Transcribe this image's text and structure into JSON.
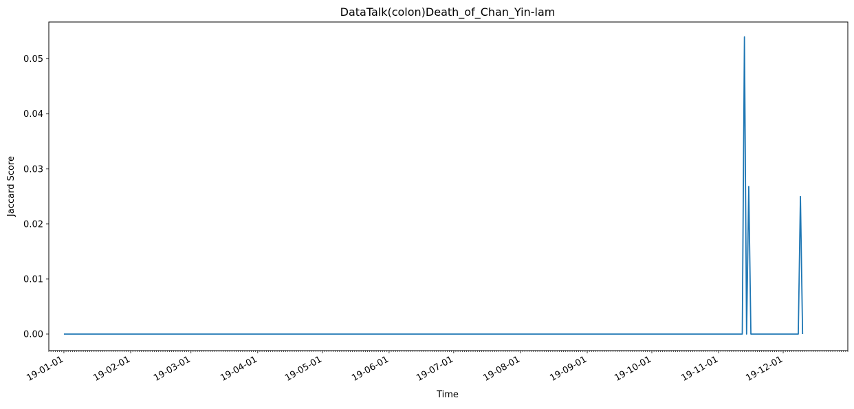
{
  "chart_data": {
    "type": "line",
    "title": "DataTalk(colon)Death_of_Chan_Yin-lam",
    "xlabel": "Time",
    "ylabel": "Jaccard Score",
    "xlim": [
      "2018-12-25",
      "2019-12-31"
    ],
    "ylim": [
      -0.003,
      0.0567
    ],
    "x_ticks": [
      {
        "date": "2019-01-01",
        "label": "19-01-01"
      },
      {
        "date": "2019-02-01",
        "label": "19-02-01"
      },
      {
        "date": "2019-03-01",
        "label": "19-03-01"
      },
      {
        "date": "2019-04-01",
        "label": "19-04-01"
      },
      {
        "date": "2019-05-01",
        "label": "19-05-01"
      },
      {
        "date": "2019-06-01",
        "label": "19-06-01"
      },
      {
        "date": "2019-07-01",
        "label": "19-07-01"
      },
      {
        "date": "2019-08-01",
        "label": "19-08-01"
      },
      {
        "date": "2019-09-01",
        "label": "19-09-01"
      },
      {
        "date": "2019-10-01",
        "label": "19-10-01"
      },
      {
        "date": "2019-11-01",
        "label": "19-11-01"
      },
      {
        "date": "2019-12-01",
        "label": "19-12-01"
      }
    ],
    "y_ticks": [
      {
        "value": 0.0,
        "label": "0.00"
      },
      {
        "value": 0.01,
        "label": "0.01"
      },
      {
        "value": 0.02,
        "label": "0.02"
      },
      {
        "value": 0.03,
        "label": "0.03"
      },
      {
        "value": 0.04,
        "label": "0.04"
      },
      {
        "value": 0.05,
        "label": "0.05"
      }
    ],
    "grid": false,
    "legend": "none",
    "colors": {
      "series": "#1f77b4",
      "axis": "#000000"
    },
    "series": [
      {
        "points": [
          {
            "x": "2019-01-01",
            "y": 0.0
          },
          {
            "x": "2019-11-12",
            "y": 0.0
          },
          {
            "x": "2019-11-13",
            "y": 0.054
          },
          {
            "x": "2019-11-14",
            "y": 0.0
          },
          {
            "x": "2019-11-15",
            "y": 0.0268
          },
          {
            "x": "2019-11-16",
            "y": 0.0
          },
          {
            "x": "2019-12-08",
            "y": 0.0
          },
          {
            "x": "2019-12-09",
            "y": 0.025
          },
          {
            "x": "2019-12-10",
            "y": 0.0
          }
        ]
      }
    ]
  }
}
